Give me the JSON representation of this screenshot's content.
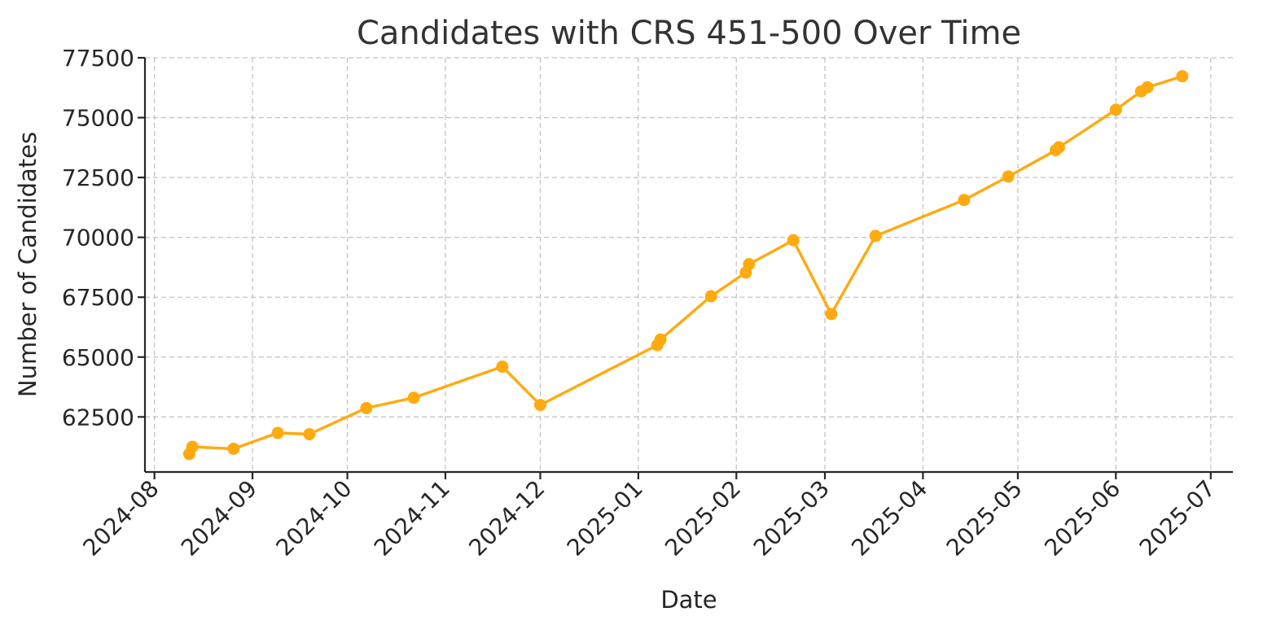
{
  "chart_data": {
    "type": "line",
    "title": "Candidates with CRS 451-500 Over Time",
    "xlabel": "Date",
    "ylabel": "Number of Candidates",
    "x_ticks": [
      "2024-08-01",
      "2024-09-01",
      "2024-10-01",
      "2024-11-01",
      "2024-12-01",
      "2025-01-01",
      "2025-02-01",
      "2025-03-01",
      "2025-04-01",
      "2025-05-01",
      "2025-06-01",
      "2025-07-01"
    ],
    "x_tick_labels": [
      "2024-08",
      "2024-09",
      "2024-10",
      "2024-11",
      "2024-12",
      "2025-01",
      "2025-02",
      "2025-03",
      "2025-04",
      "2025-05",
      "2025-06",
      "2025-07"
    ],
    "xlim": [
      "2024-07-29",
      "2025-07-08"
    ],
    "y_ticks": [
      62500,
      65000,
      67500,
      70000,
      72500,
      75000,
      77500
    ],
    "y_tick_labels": [
      "62500",
      "65000",
      "67500",
      "70000",
      "72500",
      "75000",
      "77500"
    ],
    "ylim": [
      60200,
      77500
    ],
    "grid": true,
    "color": "#FFAA0F",
    "series": [
      {
        "x": [
          "2024-08-12",
          "2024-08-13",
          "2024-08-26",
          "2024-09-09",
          "2024-09-19",
          "2024-10-07",
          "2024-10-22",
          "2024-11-19",
          "2024-12-01",
          "2025-01-07",
          "2025-01-08",
          "2025-01-24",
          "2025-02-04",
          "2025-02-05",
          "2025-02-19",
          "2025-03-03",
          "2025-03-17",
          "2025-04-14",
          "2025-04-28",
          "2025-05-13",
          "2025-05-14",
          "2025-06-01",
          "2025-06-09",
          "2025-06-11",
          "2025-06-22"
        ],
        "y": [
          60950,
          61250,
          61170,
          61830,
          61780,
          62870,
          63300,
          64600,
          63000,
          65500,
          65730,
          67540,
          68530,
          68880,
          69880,
          66800,
          70060,
          71560,
          72540,
          73640,
          73760,
          75330,
          76100,
          76270,
          76730
        ]
      }
    ]
  }
}
